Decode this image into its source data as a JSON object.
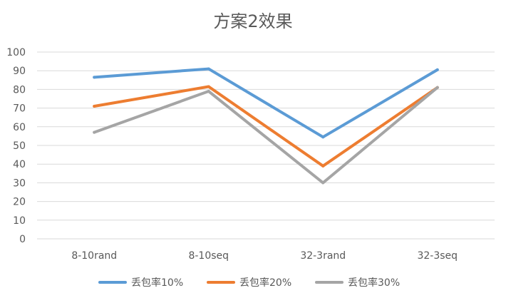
{
  "chart_data": {
    "type": "line",
    "title": "方案2效果",
    "xlabel": "",
    "ylabel": "",
    "categories": [
      "8-10rand",
      "8-10seq",
      "32-3rand",
      "32-3seq"
    ],
    "ylim": [
      0,
      100
    ],
    "yticks": [
      0,
      10,
      20,
      30,
      40,
      50,
      60,
      70,
      80,
      90,
      100
    ],
    "grid": true,
    "legend_position": "bottom",
    "series": [
      {
        "name": "丢包率10%",
        "color": "#5B9BD5",
        "values": [
          86.5,
          91,
          54.5,
          90.5
        ]
      },
      {
        "name": "丢包率20%",
        "color": "#ED7D31",
        "values": [
          71,
          81.5,
          39,
          81
        ]
      },
      {
        "name": "丢包率30%",
        "color": "#A5A5A5",
        "values": [
          57,
          79,
          30,
          81
        ]
      }
    ]
  }
}
